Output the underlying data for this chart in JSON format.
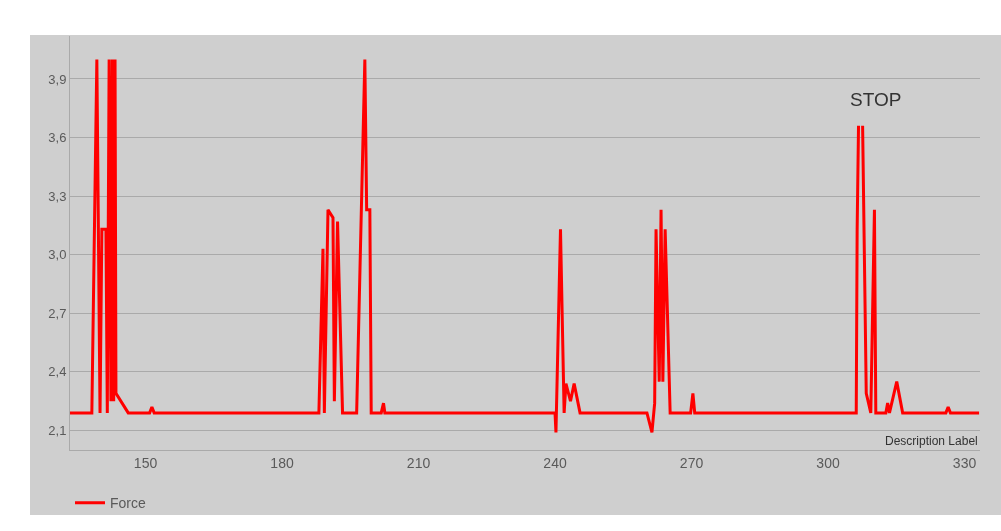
{
  "chart_data": {
    "type": "line",
    "legend": "bottom left",
    "grid": "y",
    "marker": "none",
    "line_style": "solid",
    "xlim": [
      133.4,
      333.4
    ],
    "ylim": [
      2.0,
      4.12
    ],
    "xticks": [
      150,
      180,
      210,
      240,
      270,
      300,
      330
    ],
    "yticks": [
      {
        "value": 2.1,
        "label": "2,1"
      },
      {
        "value": 2.4,
        "label": "2,4"
      },
      {
        "value": 2.7,
        "label": "2,7"
      },
      {
        "value": 3.0,
        "label": "3,0"
      },
      {
        "value": 3.3,
        "label": "3,3"
      },
      {
        "value": 3.6,
        "label": "3,6"
      },
      {
        "value": 3.9,
        "label": "3,9"
      }
    ],
    "annotations": [
      "STOP",
      "Description Label"
    ],
    "series": [
      {
        "name": "Force",
        "color": "#ff0000",
        "x": [
          133.4,
          138.2,
          139.3,
          140.0,
          140.4,
          141.3,
          141.6,
          142.0,
          142.4,
          142.7,
          143.0,
          143.3,
          143.5,
          146.2,
          150.9,
          151.4,
          151.9,
          188.1,
          189.0,
          189.3,
          190.1,
          191.2,
          191.5,
          192.2,
          193.3,
          196.4,
          198.2,
          198.6,
          199.3,
          199.6,
          201.8,
          202.3,
          202.6,
          240.0,
          240.2,
          241.2,
          242.0,
          242.4,
          243.4,
          244.2,
          245.5,
          260.2,
          261.3,
          261.9,
          262.2,
          262.9,
          263.3,
          263.7,
          264.2,
          265.3,
          269.8,
          270.3,
          270.7,
          306.2,
          306.4,
          306.7,
          307.0,
          307.6,
          308.4,
          309.4,
          310.2,
          310.5,
          312.7,
          313.1,
          313.5,
          315.1,
          316.4,
          325.9,
          326.4,
          326.9,
          333.2
        ],
        "values": [
          2.19,
          2.19,
          4.0,
          2.19,
          3.13,
          3.13,
          2.19,
          4.0,
          2.25,
          4.0,
          2.25,
          4.0,
          2.29,
          2.19,
          2.19,
          2.22,
          2.19,
          2.19,
          3.03,
          2.19,
          3.23,
          3.19,
          2.25,
          3.17,
          2.19,
          2.19,
          4.0,
          3.23,
          3.23,
          2.19,
          2.19,
          2.24,
          2.19,
          2.19,
          2.09,
          3.13,
          2.19,
          2.34,
          2.25,
          2.34,
          2.19,
          2.19,
          2.09,
          2.24,
          3.13,
          2.35,
          3.23,
          2.35,
          3.13,
          2.19,
          2.19,
          2.29,
          2.19,
          2.19,
          3.13,
          3.66,
          null,
          3.66,
          2.29,
          2.19,
          3.23,
          2.19,
          2.19,
          2.24,
          2.19,
          2.35,
          2.19,
          2.19,
          2.22,
          2.19,
          2.19
        ]
      }
    ]
  }
}
